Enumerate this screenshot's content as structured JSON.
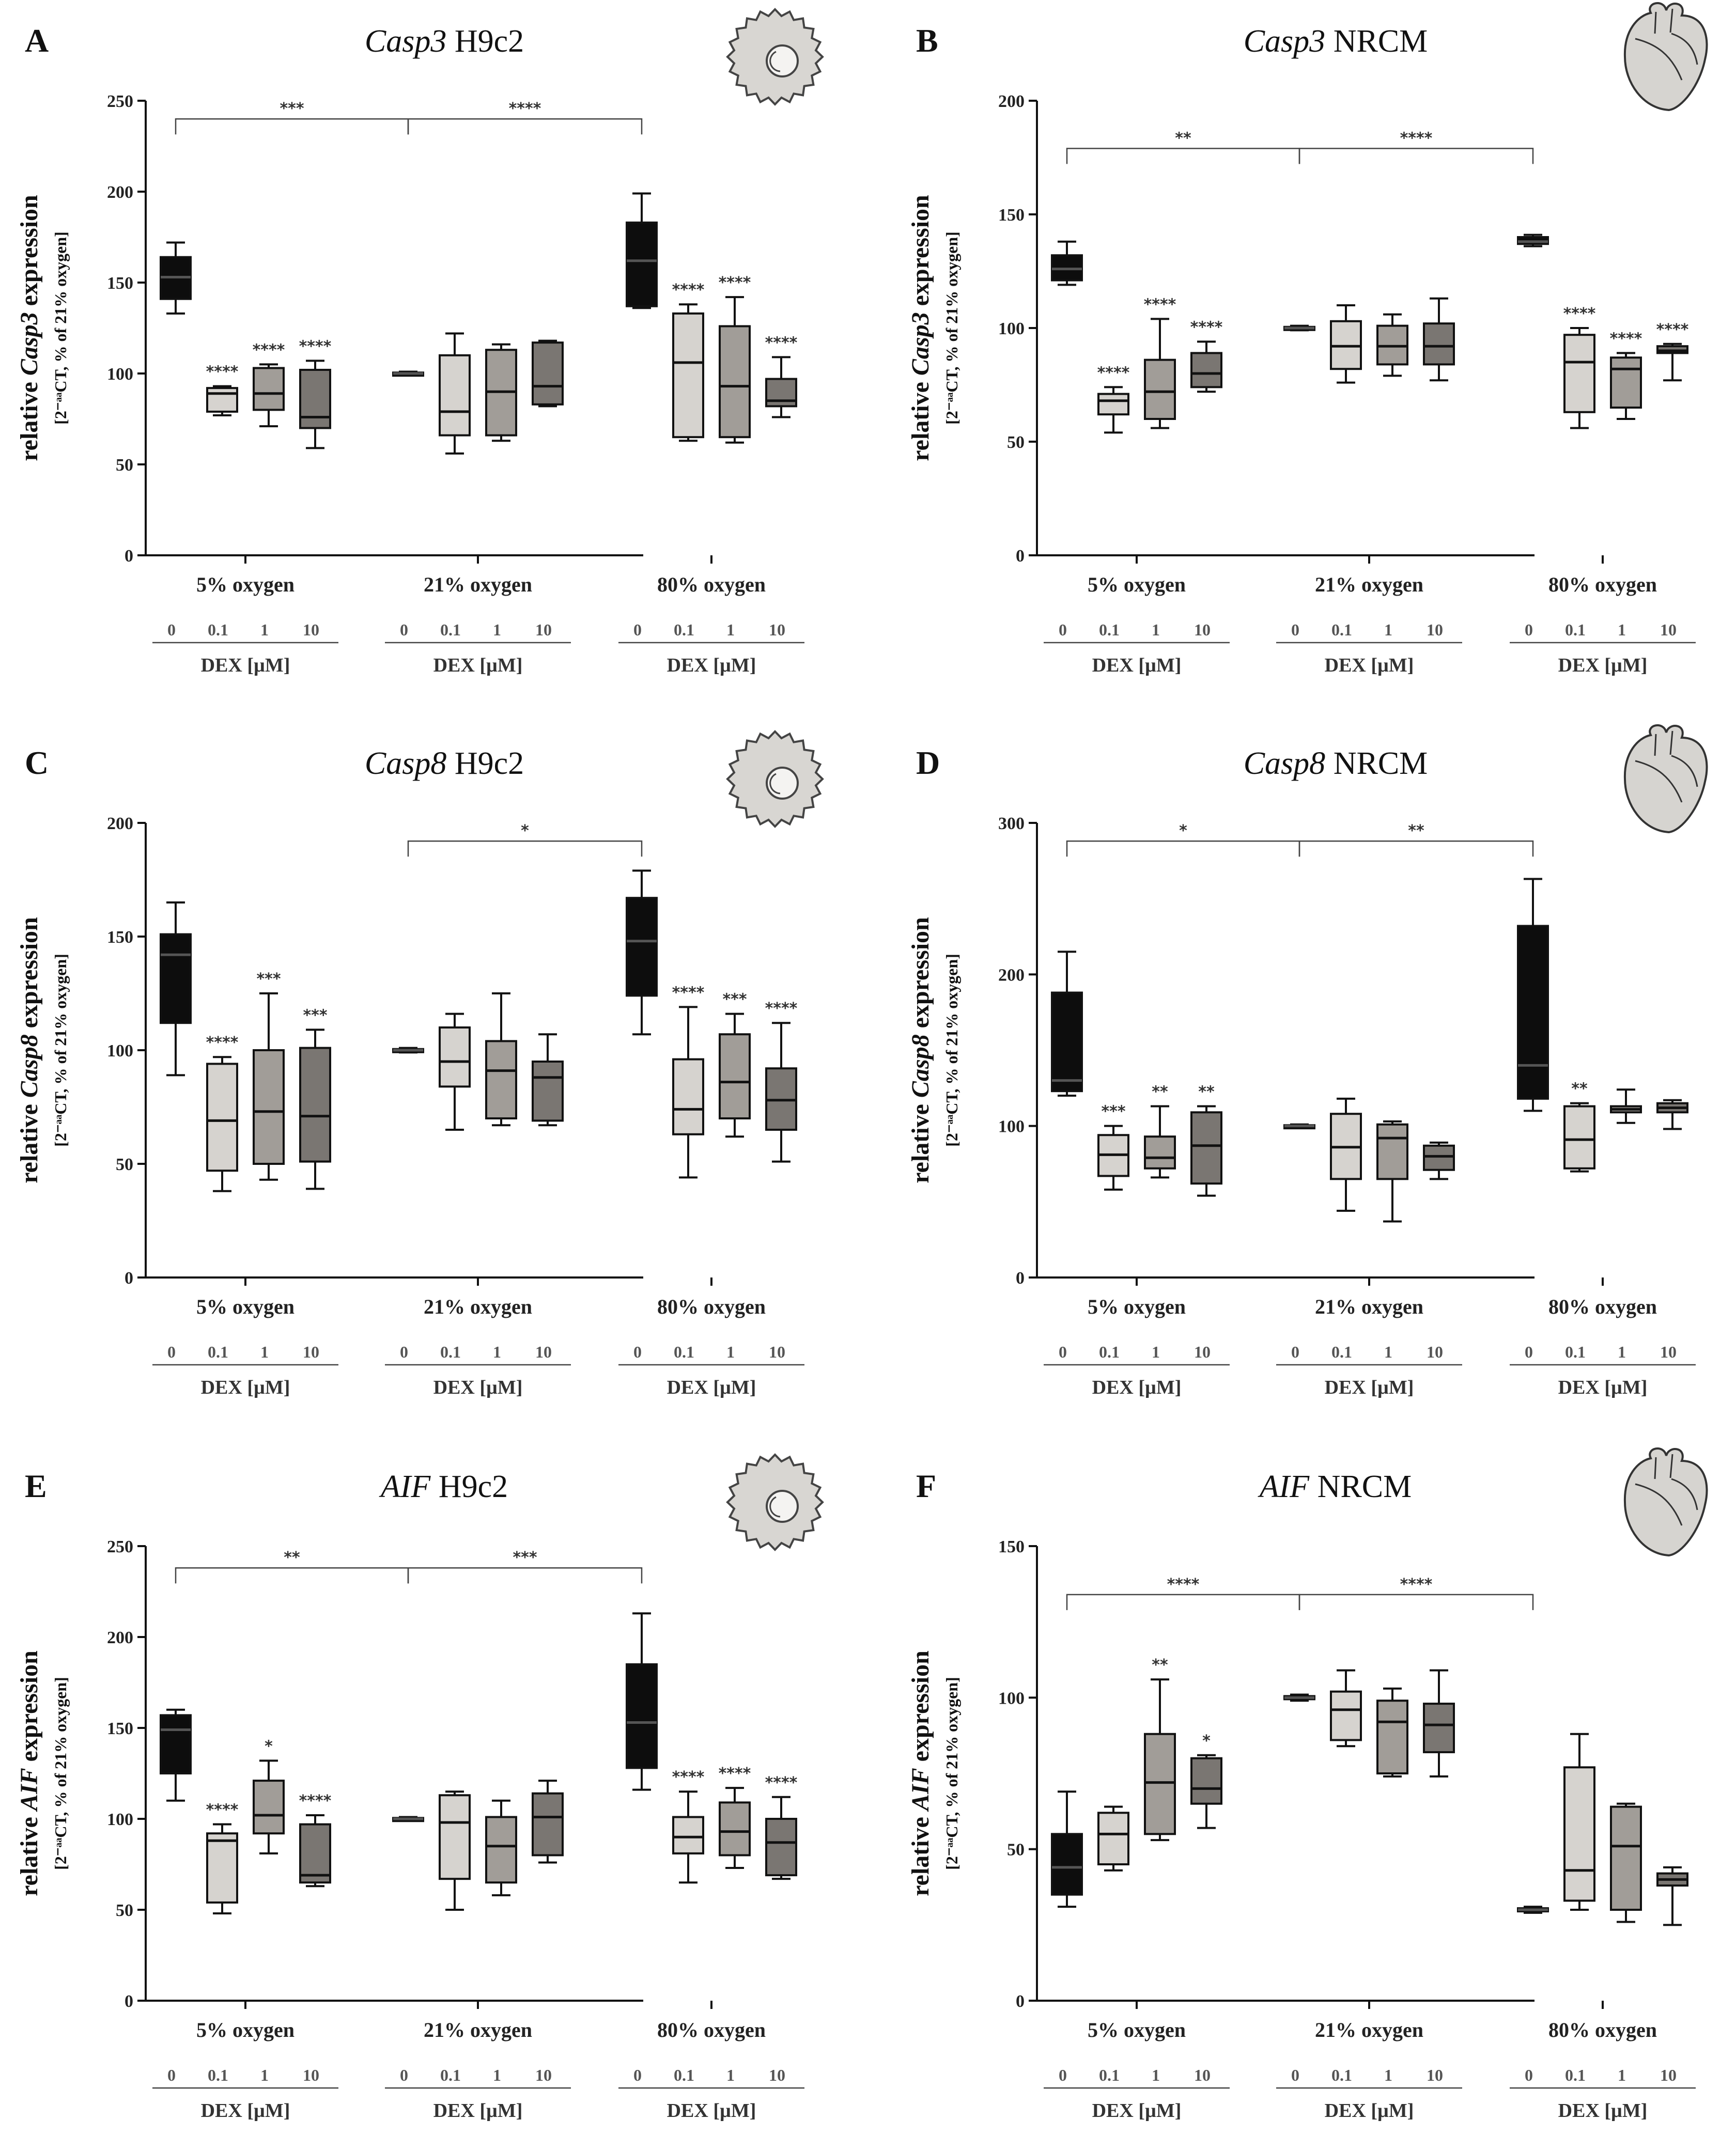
{
  "colors": [
    "#0d0d0d",
    "#d6d3cf",
    "#a19d98",
    "#7a7672"
  ],
  "dose_labels": [
    "0",
    "0.1",
    "1",
    "10"
  ],
  "dex_label": "DEX [µM]",
  "group_labels": [
    "5% oxygen",
    "21% oxygen",
    "80% oxygen"
  ],
  "chart_data": [
    {
      "id": "A",
      "letter": "A",
      "gene": "Casp3",
      "cell": "H9c2",
      "icon": "cell-icon",
      "type": "box",
      "ylabel_pre": "relative ",
      "ylabel_gene": "Casp3",
      "ylabel_post": " expression",
      "ylabel2": "[2⁻ᵃᵃCT, % of 21% oxygen]",
      "ylim": [
        0,
        250
      ],
      "yticks": [
        0,
        50,
        100,
        150,
        200,
        250
      ],
      "brackets": [
        {
          "from": 0,
          "to": 4,
          "y": 240,
          "label": "***"
        },
        {
          "from": 4,
          "to": 8,
          "y": 240,
          "label": "****"
        }
      ],
      "boxes": [
        {
          "g": 0,
          "d": 0,
          "min": 133,
          "q1": 141,
          "med": 153,
          "q3": 164,
          "max": 172,
          "star": ""
        },
        {
          "g": 0,
          "d": 1,
          "min": 77,
          "q1": 79,
          "med": 89,
          "q3": 92,
          "max": 93,
          "star": "****"
        },
        {
          "g": 0,
          "d": 2,
          "min": 71,
          "q1": 80,
          "med": 89,
          "q3": 103,
          "max": 105,
          "star": "****"
        },
        {
          "g": 0,
          "d": 3,
          "min": 59,
          "q1": 70,
          "med": 76,
          "q3": 102,
          "max": 107,
          "star": "****"
        },
        {
          "g": 1,
          "d": 0,
          "min": 99,
          "q1": 99.5,
          "med": 100,
          "q3": 100.5,
          "max": 101,
          "star": ""
        },
        {
          "g": 1,
          "d": 1,
          "min": 56,
          "q1": 66,
          "med": 79,
          "q3": 110,
          "max": 122,
          "star": ""
        },
        {
          "g": 1,
          "d": 2,
          "min": 63,
          "q1": 66,
          "med": 90,
          "q3": 113,
          "max": 116,
          "star": ""
        },
        {
          "g": 1,
          "d": 3,
          "min": 82,
          "q1": 83,
          "med": 93,
          "q3": 117,
          "max": 118,
          "star": ""
        },
        {
          "g": 2,
          "d": 0,
          "min": 136,
          "q1": 137,
          "med": 162,
          "q3": 183,
          "max": 199,
          "star": ""
        },
        {
          "g": 2,
          "d": 1,
          "min": 63,
          "q1": 65,
          "med": 106,
          "q3": 133,
          "max": 138,
          "star": "****"
        },
        {
          "g": 2,
          "d": 2,
          "min": 62,
          "q1": 65,
          "med": 93,
          "q3": 126,
          "max": 142,
          "star": "****"
        },
        {
          "g": 2,
          "d": 3,
          "min": 76,
          "q1": 82,
          "med": 85,
          "q3": 97,
          "max": 109,
          "star": "****"
        }
      ]
    },
    {
      "id": "B",
      "letter": "B",
      "gene": "Casp3",
      "cell": "NRCM",
      "icon": "heart-icon",
      "type": "box",
      "ylabel_pre": "relative ",
      "ylabel_gene": "Casp3",
      "ylabel_post": " expression",
      "ylabel2": "[2⁻ᵃᵃCT, % of 21% oxygen]",
      "ylim": [
        0,
        200
      ],
      "yticks": [
        0,
        50,
        100,
        150,
        200
      ],
      "brackets": [
        {
          "from": 0,
          "to": 4,
          "y": 179,
          "label": "**"
        },
        {
          "from": 4,
          "to": 8,
          "y": 179,
          "label": "****"
        }
      ],
      "boxes": [
        {
          "g": 0,
          "d": 0,
          "min": 119,
          "q1": 121,
          "med": 126,
          "q3": 132,
          "max": 138,
          "star": ""
        },
        {
          "g": 0,
          "d": 1,
          "min": 54,
          "q1": 62,
          "med": 68,
          "q3": 71,
          "max": 74,
          "star": "****"
        },
        {
          "g": 0,
          "d": 2,
          "min": 56,
          "q1": 60,
          "med": 72,
          "q3": 86,
          "max": 104,
          "star": "****"
        },
        {
          "g": 0,
          "d": 3,
          "min": 72,
          "q1": 74,
          "med": 80,
          "q3": 89,
          "max": 94,
          "star": "****"
        },
        {
          "g": 1,
          "d": 0,
          "min": 99,
          "q1": 99.5,
          "med": 100,
          "q3": 100.5,
          "max": 101,
          "star": ""
        },
        {
          "g": 1,
          "d": 1,
          "min": 76,
          "q1": 82,
          "med": 92,
          "q3": 103,
          "max": 110,
          "star": ""
        },
        {
          "g": 1,
          "d": 2,
          "min": 79,
          "q1": 84,
          "med": 92,
          "q3": 101,
          "max": 106,
          "star": ""
        },
        {
          "g": 1,
          "d": 3,
          "min": 77,
          "q1": 84,
          "med": 92,
          "q3": 102,
          "max": 113,
          "star": ""
        },
        {
          "g": 2,
          "d": 0,
          "min": 136,
          "q1": 137,
          "med": 138,
          "q3": 140,
          "max": 141,
          "star": ""
        },
        {
          "g": 2,
          "d": 1,
          "min": 56,
          "q1": 63,
          "med": 85,
          "q3": 97,
          "max": 100,
          "star": "****"
        },
        {
          "g": 2,
          "d": 2,
          "min": 60,
          "q1": 65,
          "med": 82,
          "q3": 87,
          "max": 89,
          "star": "****"
        },
        {
          "g": 2,
          "d": 3,
          "min": 77,
          "q1": 89,
          "med": 90,
          "q3": 92,
          "max": 93,
          "star": "****"
        }
      ]
    },
    {
      "id": "C",
      "letter": "C",
      "gene": "Casp8",
      "cell": "H9c2",
      "icon": "cell-icon",
      "type": "box",
      "ylabel_pre": "relative ",
      "ylabel_gene": "Casp8",
      "ylabel_post": " expression",
      "ylabel2": "[2⁻ᵃᵃCT, % of 21% oxygen]",
      "ylim": [
        0,
        200
      ],
      "yticks": [
        0,
        50,
        100,
        150,
        200
      ],
      "brackets": [
        {
          "from": 4,
          "to": 8,
          "y": 192,
          "label": "*"
        }
      ],
      "boxes": [
        {
          "g": 0,
          "d": 0,
          "min": 89,
          "q1": 112,
          "med": 142,
          "q3": 151,
          "max": 165,
          "star": ""
        },
        {
          "g": 0,
          "d": 1,
          "min": 38,
          "q1": 47,
          "med": 69,
          "q3": 94,
          "max": 97,
          "star": "****"
        },
        {
          "g": 0,
          "d": 2,
          "min": 43,
          "q1": 50,
          "med": 73,
          "q3": 100,
          "max": 125,
          "star": "***"
        },
        {
          "g": 0,
          "d": 3,
          "min": 39,
          "q1": 51,
          "med": 71,
          "q3": 101,
          "max": 109,
          "star": "***"
        },
        {
          "g": 1,
          "d": 0,
          "min": 99,
          "q1": 99.5,
          "med": 100,
          "q3": 100.5,
          "max": 101,
          "star": ""
        },
        {
          "g": 1,
          "d": 1,
          "min": 65,
          "q1": 84,
          "med": 95,
          "q3": 110,
          "max": 116,
          "star": ""
        },
        {
          "g": 1,
          "d": 2,
          "min": 67,
          "q1": 70,
          "med": 91,
          "q3": 104,
          "max": 125,
          "star": ""
        },
        {
          "g": 1,
          "d": 3,
          "min": 67,
          "q1": 69,
          "med": 88,
          "q3": 95,
          "max": 107,
          "star": ""
        },
        {
          "g": 2,
          "d": 0,
          "min": 107,
          "q1": 124,
          "med": 148,
          "q3": 167,
          "max": 179,
          "star": ""
        },
        {
          "g": 2,
          "d": 1,
          "min": 44,
          "q1": 63,
          "med": 74,
          "q3": 96,
          "max": 119,
          "star": "****"
        },
        {
          "g": 2,
          "d": 2,
          "min": 62,
          "q1": 70,
          "med": 86,
          "q3": 107,
          "max": 116,
          "star": "***"
        },
        {
          "g": 2,
          "d": 3,
          "min": 51,
          "q1": 65,
          "med": 78,
          "q3": 92,
          "max": 112,
          "star": "****"
        }
      ]
    },
    {
      "id": "D",
      "letter": "D",
      "gene": "Casp8",
      "cell": "NRCM",
      "icon": "heart-icon",
      "type": "box",
      "ylabel_pre": "relative ",
      "ylabel_gene": "Casp8",
      "ylabel_post": " expression",
      "ylabel2": "[2⁻ᵃᵃCT, % of 21% oxygen]",
      "ylim": [
        0,
        300
      ],
      "yticks": [
        0,
        100,
        200,
        300
      ],
      "brackets": [
        {
          "from": 0,
          "to": 4,
          "y": 288,
          "label": "*"
        },
        {
          "from": 4,
          "to": 8,
          "y": 288,
          "label": "**"
        }
      ],
      "boxes": [
        {
          "g": 0,
          "d": 0,
          "min": 120,
          "q1": 123,
          "med": 130,
          "q3": 188,
          "max": 215,
          "star": ""
        },
        {
          "g": 0,
          "d": 1,
          "min": 58,
          "q1": 67,
          "med": 81,
          "q3": 94,
          "max": 100,
          "star": "***"
        },
        {
          "g": 0,
          "d": 2,
          "min": 66,
          "q1": 72,
          "med": 79,
          "q3": 93,
          "max": 113,
          "star": "**"
        },
        {
          "g": 0,
          "d": 3,
          "min": 54,
          "q1": 62,
          "med": 87,
          "q3": 109,
          "max": 113,
          "star": "**"
        },
        {
          "g": 1,
          "d": 0,
          "min": 99,
          "q1": 99.5,
          "med": 100,
          "q3": 100.5,
          "max": 101,
          "star": ""
        },
        {
          "g": 1,
          "d": 1,
          "min": 44,
          "q1": 65,
          "med": 86,
          "q3": 108,
          "max": 118,
          "star": ""
        },
        {
          "g": 1,
          "d": 2,
          "min": 37,
          "q1": 65,
          "med": 92,
          "q3": 101,
          "max": 103,
          "star": ""
        },
        {
          "g": 1,
          "d": 3,
          "min": 65,
          "q1": 71,
          "med": 80,
          "q3": 87,
          "max": 89,
          "star": ""
        },
        {
          "g": 2,
          "d": 0,
          "min": 110,
          "q1": 118,
          "med": 140,
          "q3": 232,
          "max": 263,
          "star": ""
        },
        {
          "g": 2,
          "d": 1,
          "min": 70,
          "q1": 72,
          "med": 91,
          "q3": 113,
          "max": 115,
          "star": "**"
        },
        {
          "g": 2,
          "d": 2,
          "min": 102,
          "q1": 109,
          "med": 111,
          "q3": 113,
          "max": 124,
          "star": ""
        },
        {
          "g": 2,
          "d": 3,
          "min": 98,
          "q1": 109,
          "med": 112,
          "q3": 115,
          "max": 117,
          "star": ""
        }
      ]
    },
    {
      "id": "E",
      "letter": "E",
      "gene": "AIF",
      "cell": "H9c2",
      "icon": "cell-icon",
      "type": "box",
      "ylabel_pre": "relative ",
      "ylabel_gene": "AIF",
      "ylabel_post": " expression",
      "ylabel2": "[2⁻ᵃᵃCT, % of 21% oxygen]",
      "ylim": [
        0,
        250
      ],
      "yticks": [
        0,
        50,
        100,
        150,
        200,
        250
      ],
      "brackets": [
        {
          "from": 0,
          "to": 4,
          "y": 238,
          "label": "**"
        },
        {
          "from": 4,
          "to": 8,
          "y": 238,
          "label": "***"
        }
      ],
      "boxes": [
        {
          "g": 0,
          "d": 0,
          "min": 110,
          "q1": 125,
          "med": 149,
          "q3": 157,
          "max": 160,
          "star": ""
        },
        {
          "g": 0,
          "d": 1,
          "min": 48,
          "q1": 54,
          "med": 88,
          "q3": 92,
          "max": 97,
          "star": "****"
        },
        {
          "g": 0,
          "d": 2,
          "min": 81,
          "q1": 92,
          "med": 102,
          "q3": 121,
          "max": 132,
          "star": "*"
        },
        {
          "g": 0,
          "d": 3,
          "min": 63,
          "q1": 65,
          "med": 69,
          "q3": 97,
          "max": 102,
          "star": "****"
        },
        {
          "g": 1,
          "d": 0,
          "min": 99,
          "q1": 99.5,
          "med": 100,
          "q3": 100.5,
          "max": 101,
          "star": ""
        },
        {
          "g": 1,
          "d": 1,
          "min": 50,
          "q1": 67,
          "med": 98,
          "q3": 113,
          "max": 115,
          "star": ""
        },
        {
          "g": 1,
          "d": 2,
          "min": 58,
          "q1": 65,
          "med": 85,
          "q3": 101,
          "max": 110,
          "star": ""
        },
        {
          "g": 1,
          "d": 3,
          "min": 76,
          "q1": 80,
          "med": 101,
          "q3": 114,
          "max": 121,
          "star": ""
        },
        {
          "g": 2,
          "d": 0,
          "min": 116,
          "q1": 128,
          "med": 153,
          "q3": 185,
          "max": 213,
          "star": ""
        },
        {
          "g": 2,
          "d": 1,
          "min": 65,
          "q1": 81,
          "med": 90,
          "q3": 101,
          "max": 115,
          "star": "****"
        },
        {
          "g": 2,
          "d": 2,
          "min": 73,
          "q1": 80,
          "med": 93,
          "q3": 109,
          "max": 117,
          "star": "****"
        },
        {
          "g": 2,
          "d": 3,
          "min": 67,
          "q1": 69,
          "med": 87,
          "q3": 100,
          "max": 112,
          "star": "****"
        }
      ]
    },
    {
      "id": "F",
      "letter": "F",
      "gene": "AIF",
      "cell": "NRCM",
      "icon": "heart-icon",
      "type": "box",
      "ylabel_pre": "relative ",
      "ylabel_gene": "AIF",
      "ylabel_post": " expression",
      "ylabel2": "[2⁻ᵃᵃCT, % of 21% oxygen]",
      "ylim": [
        0,
        150
      ],
      "yticks": [
        0,
        50,
        100,
        150
      ],
      "brackets": [
        {
          "from": 0,
          "to": 4,
          "y": 134,
          "label": "****"
        },
        {
          "from": 4,
          "to": 8,
          "y": 134,
          "label": "****"
        }
      ],
      "boxes": [
        {
          "g": 0,
          "d": 0,
          "min": 31,
          "q1": 35,
          "med": 44,
          "q3": 55,
          "max": 69,
          "star": ""
        },
        {
          "g": 0,
          "d": 1,
          "min": 43,
          "q1": 45,
          "med": 55,
          "q3": 62,
          "max": 64,
          "star": ""
        },
        {
          "g": 0,
          "d": 2,
          "min": 53,
          "q1": 55,
          "med": 72,
          "q3": 88,
          "max": 106,
          "star": "**"
        },
        {
          "g": 0,
          "d": 3,
          "min": 57,
          "q1": 65,
          "med": 70,
          "q3": 80,
          "max": 81,
          "star": "*"
        },
        {
          "g": 1,
          "d": 0,
          "min": 99,
          "q1": 99.5,
          "med": 100,
          "q3": 100.5,
          "max": 101,
          "star": ""
        },
        {
          "g": 1,
          "d": 1,
          "min": 84,
          "q1": 86,
          "med": 96,
          "q3": 102,
          "max": 109,
          "star": ""
        },
        {
          "g": 1,
          "d": 2,
          "min": 74,
          "q1": 75,
          "med": 92,
          "q3": 99,
          "max": 103,
          "star": ""
        },
        {
          "g": 1,
          "d": 3,
          "min": 74,
          "q1": 82,
          "med": 91,
          "q3": 98,
          "max": 109,
          "star": ""
        },
        {
          "g": 2,
          "d": 0,
          "min": 29,
          "q1": 29.5,
          "med": 30,
          "q3": 30.5,
          "max": 31,
          "star": ""
        },
        {
          "g": 2,
          "d": 1,
          "min": 30,
          "q1": 33,
          "med": 43,
          "q3": 77,
          "max": 88,
          "star": ""
        },
        {
          "g": 2,
          "d": 2,
          "min": 26,
          "q1": 30,
          "med": 51,
          "q3": 64,
          "max": 65,
          "star": ""
        },
        {
          "g": 2,
          "d": 3,
          "min": 25,
          "q1": 38,
          "med": 40,
          "q3": 42,
          "max": 44,
          "star": ""
        }
      ]
    }
  ]
}
